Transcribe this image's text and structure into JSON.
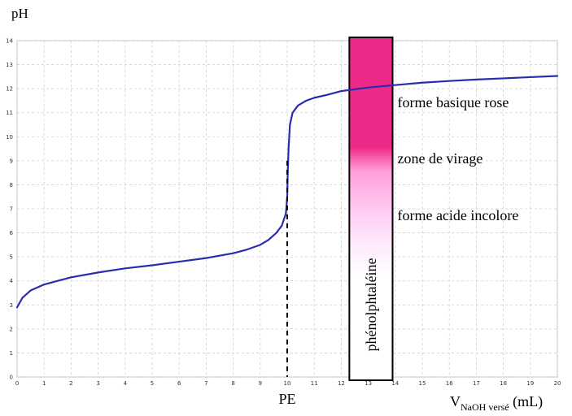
{
  "chart_data": {
    "type": "line",
    "ylabel": "pH",
    "xlabel": {
      "main": "V",
      "sub": "NaOH versé",
      "unit": " (mL)"
    },
    "xlim": [
      0,
      20
    ],
    "ylim": [
      0,
      14
    ],
    "xticks": [
      "0",
      "1",
      "2",
      "3",
      "4",
      "5",
      "6",
      "7",
      "8",
      "9",
      "10",
      "11",
      "12",
      "13",
      "14",
      "15",
      "16",
      "17",
      "18",
      "19",
      "20"
    ],
    "yticks": [
      "0",
      "1",
      "2",
      "3",
      "4",
      "5",
      "6",
      "7",
      "8",
      "9",
      "10",
      "11",
      "12",
      "13",
      "14"
    ],
    "grid": true,
    "series": [
      {
        "color": "#2b2bb0",
        "points": [
          [
            0,
            2.9
          ],
          [
            0.2,
            3.3
          ],
          [
            0.5,
            3.6
          ],
          [
            1,
            3.85
          ],
          [
            1.5,
            4.0
          ],
          [
            2,
            4.15
          ],
          [
            3,
            4.35
          ],
          [
            4,
            4.52
          ],
          [
            5,
            4.65
          ],
          [
            6,
            4.8
          ],
          [
            7,
            4.95
          ],
          [
            8,
            5.15
          ],
          [
            8.5,
            5.3
          ],
          [
            9,
            5.5
          ],
          [
            9.3,
            5.7
          ],
          [
            9.6,
            6.0
          ],
          [
            9.8,
            6.3
          ],
          [
            9.95,
            6.8
          ],
          [
            10.0,
            7.5
          ],
          [
            10.02,
            8.5
          ],
          [
            10.05,
            9.5
          ],
          [
            10.1,
            10.5
          ],
          [
            10.2,
            11.0
          ],
          [
            10.4,
            11.3
          ],
          [
            10.7,
            11.5
          ],
          [
            11,
            11.62
          ],
          [
            11.5,
            11.75
          ],
          [
            12,
            11.9
          ],
          [
            13,
            12.05
          ],
          [
            14,
            12.15
          ],
          [
            15,
            12.25
          ],
          [
            16,
            12.32
          ],
          [
            17,
            12.38
          ],
          [
            18,
            12.43
          ],
          [
            19,
            12.48
          ],
          [
            20,
            12.53
          ]
        ]
      }
    ],
    "equivalence": {
      "x": 10,
      "y": 9,
      "label": "PE"
    },
    "indicator": {
      "name": "phénolphtaléine",
      "x_range": [
        12.3,
        13.9
      ],
      "pink_color": "#ee2a88",
      "zones": [
        {
          "label": "forme basique rose",
          "ph_range": [
            10,
            14
          ]
        },
        {
          "label": "zone de virage",
          "ph_range": [
            8.2,
            10
          ]
        },
        {
          "label": "forme acide incolore",
          "ph_range": [
            0,
            8.2
          ]
        }
      ]
    }
  }
}
